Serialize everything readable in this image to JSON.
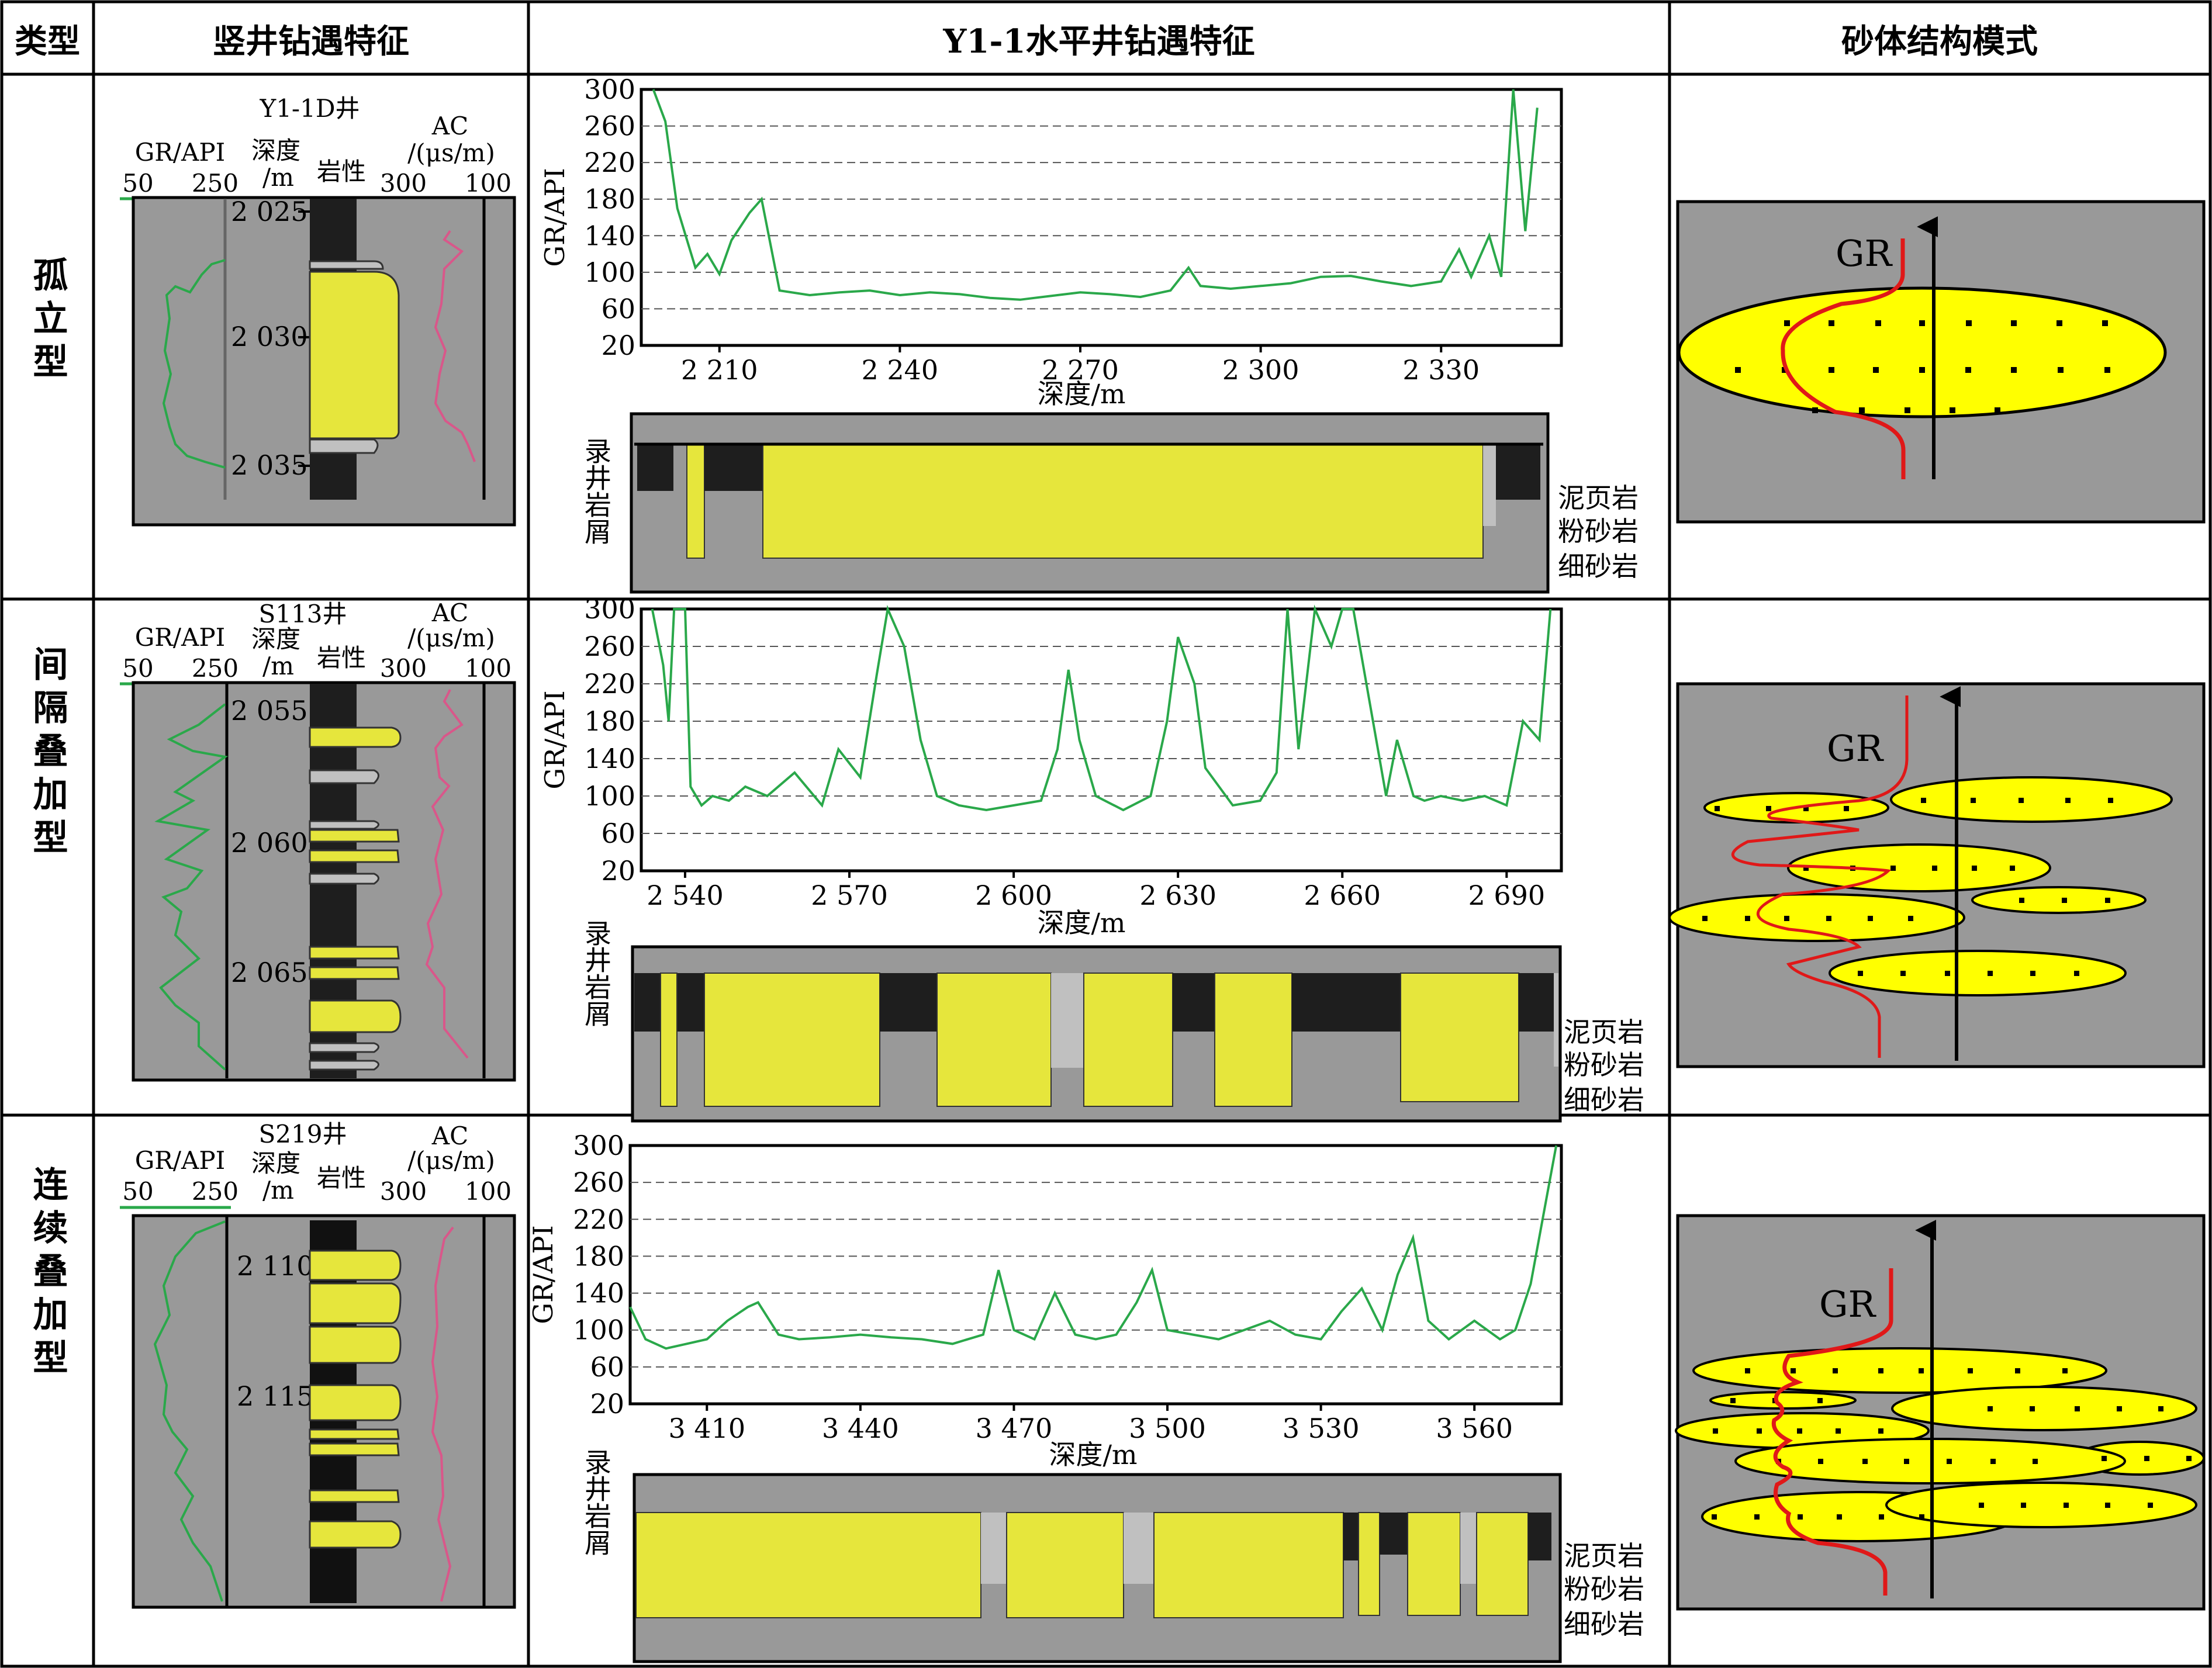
{
  "header": {
    "col_type": "类型",
    "col_vertical": "竖井钻遇特征",
    "col_horizontal": "Y1-1水平井钻遇特征",
    "col_model": "砂体结构模式"
  },
  "rows": [
    {
      "type": "孤立型",
      "well": "Y1-1D井",
      "depths": [
        "2 025",
        "2 030",
        "2 035"
      ],
      "horizontal": {
        "xticks": [
          "2 210",
          "2 240",
          "2 270",
          "2 300",
          "2 330"
        ],
        "x": [
          2199,
          2201,
          2203,
          2206,
          2208,
          2210,
          2212,
          2215,
          2217,
          2220,
          2225,
          2230,
          2235,
          2240,
          2245,
          2250,
          2255,
          2260,
          2265,
          2270,
          2275,
          2280,
          2285,
          2288,
          2290,
          2295,
          2300,
          2305,
          2310,
          2315,
          2320,
          2325,
          2330,
          2333,
          2335,
          2338,
          2340,
          2342,
          2344,
          2346
        ],
        "gr": [
          300,
          265,
          170,
          105,
          120,
          98,
          135,
          165,
          180,
          80,
          75,
          78,
          80,
          75,
          78,
          76,
          72,
          70,
          74,
          78,
          76,
          73,
          80,
          105,
          85,
          82,
          85,
          88,
          95,
          96,
          90,
          85,
          90,
          125,
          95,
          140,
          95,
          300,
          145,
          280
        ]
      }
    },
    {
      "type": "间隔叠加型",
      "well": "S113井",
      "depths": [
        "2 055",
        "2 060",
        "2 065"
      ],
      "horizontal": {
        "xticks": [
          "2 540",
          "2 570",
          "2 600",
          "2 630",
          "2 660",
          "2 690"
        ],
        "x": [
          2534,
          2536,
          2537,
          2538,
          2540,
          2541,
          2543,
          2545,
          2548,
          2551,
          2555,
          2560,
          2565,
          2568,
          2572,
          2575,
          2577,
          2580,
          2583,
          2586,
          2590,
          2595,
          2600,
          2605,
          2608,
          2610,
          2612,
          2615,
          2620,
          2625,
          2628,
          2630,
          2633,
          2635,
          2640,
          2645,
          2648,
          2650,
          2652,
          2655,
          2658,
          2660,
          2662,
          2665,
          2668,
          2670,
          2673,
          2675,
          2678,
          2682,
          2686,
          2690,
          2693,
          2696,
          2698
        ],
        "gr": [
          300,
          240,
          180,
          300,
          300,
          110,
          90,
          100,
          95,
          110,
          100,
          125,
          90,
          150,
          120,
          230,
          300,
          260,
          160,
          100,
          90,
          85,
          90,
          95,
          150,
          235,
          160,
          100,
          85,
          100,
          180,
          270,
          220,
          130,
          90,
          95,
          125,
          300,
          150,
          300,
          260,
          300,
          300,
          200,
          100,
          160,
          100,
          95,
          100,
          95,
          100,
          90,
          180,
          160,
          300
        ]
      }
    },
    {
      "type": "连续叠加型",
      "well": "S219井",
      "depths": [
        "2 110",
        "2 115"
      ],
      "horizontal": {
        "xticks": [
          "3 410",
          "3 440",
          "3 470",
          "3 500",
          "3 530",
          "3 560"
        ],
        "x": [
          3395,
          3398,
          3402,
          3406,
          3410,
          3414,
          3418,
          3420,
          3424,
          3428,
          3434,
          3440,
          3446,
          3452,
          3458,
          3464,
          3467,
          3470,
          3474,
          3478,
          3482,
          3486,
          3490,
          3494,
          3497,
          3500,
          3505,
          3510,
          3515,
          3520,
          3525,
          3530,
          3534,
          3538,
          3542,
          3545,
          3548,
          3551,
          3555,
          3560,
          3565,
          3568,
          3571,
          3574,
          3576
        ],
        "gr": [
          125,
          90,
          80,
          85,
          90,
          110,
          125,
          130,
          95,
          90,
          92,
          95,
          92,
          90,
          85,
          95,
          165,
          100,
          90,
          140,
          95,
          90,
          95,
          130,
          165,
          100,
          95,
          90,
          100,
          110,
          95,
          90,
          120,
          145,
          100,
          160,
          200,
          110,
          90,
          110,
          90,
          100,
          150,
          240,
          300
        ]
      }
    }
  ],
  "curve_labels": {
    "gr": "GR/API",
    "gr_min": "50",
    "gr_max": "250",
    "depth": "深度",
    "depth_unit": "/m",
    "lith": "岩性",
    "ac": "AC",
    "ac_unit": "/(μs/m)",
    "ac_min": "300",
    "ac_max": "100"
  },
  "chart_axes": {
    "ylabel": "GR/API",
    "xlabel": "深度/m",
    "yticks": [
      "300",
      "260",
      "220",
      "180",
      "140",
      "100",
      "60",
      "20"
    ]
  },
  "lith_log": {
    "title": "录井岩屑",
    "legend": [
      "泥页岩",
      "粉砂岩",
      "细砂岩"
    ]
  },
  "model_label": "GR",
  "colors": {
    "panel_gray": "#999999",
    "sand_yellow": "#e6e63c",
    "shale_black": "#1e1e1e",
    "silt_gray": "#c0c0c0",
    "gr_green": "#2aa84a",
    "ac_pink": "#d9578a",
    "model_yellow": "#ffff00",
    "model_red": "#e01818"
  },
  "chart_data": [
    {
      "type": "line",
      "title": "",
      "xlabel": "深度/m",
      "ylabel": "GR/API",
      "ylim": [
        20,
        300
      ],
      "xlim": [
        2197,
        2350
      ],
      "series_ref": "rows.0.horizontal"
    },
    {
      "type": "line",
      "title": "",
      "xlabel": "深度/m",
      "ylabel": "GR/API",
      "ylim": [
        20,
        300
      ],
      "xlim": [
        2532,
        2700
      ],
      "series_ref": "rows.1.horizontal"
    },
    {
      "type": "line",
      "title": "",
      "xlabel": "深度/m",
      "ylabel": "GR/API",
      "ylim": [
        20,
        300
      ],
      "xlim": [
        3395,
        3577
      ],
      "series_ref": "rows.2.horizontal"
    }
  ]
}
